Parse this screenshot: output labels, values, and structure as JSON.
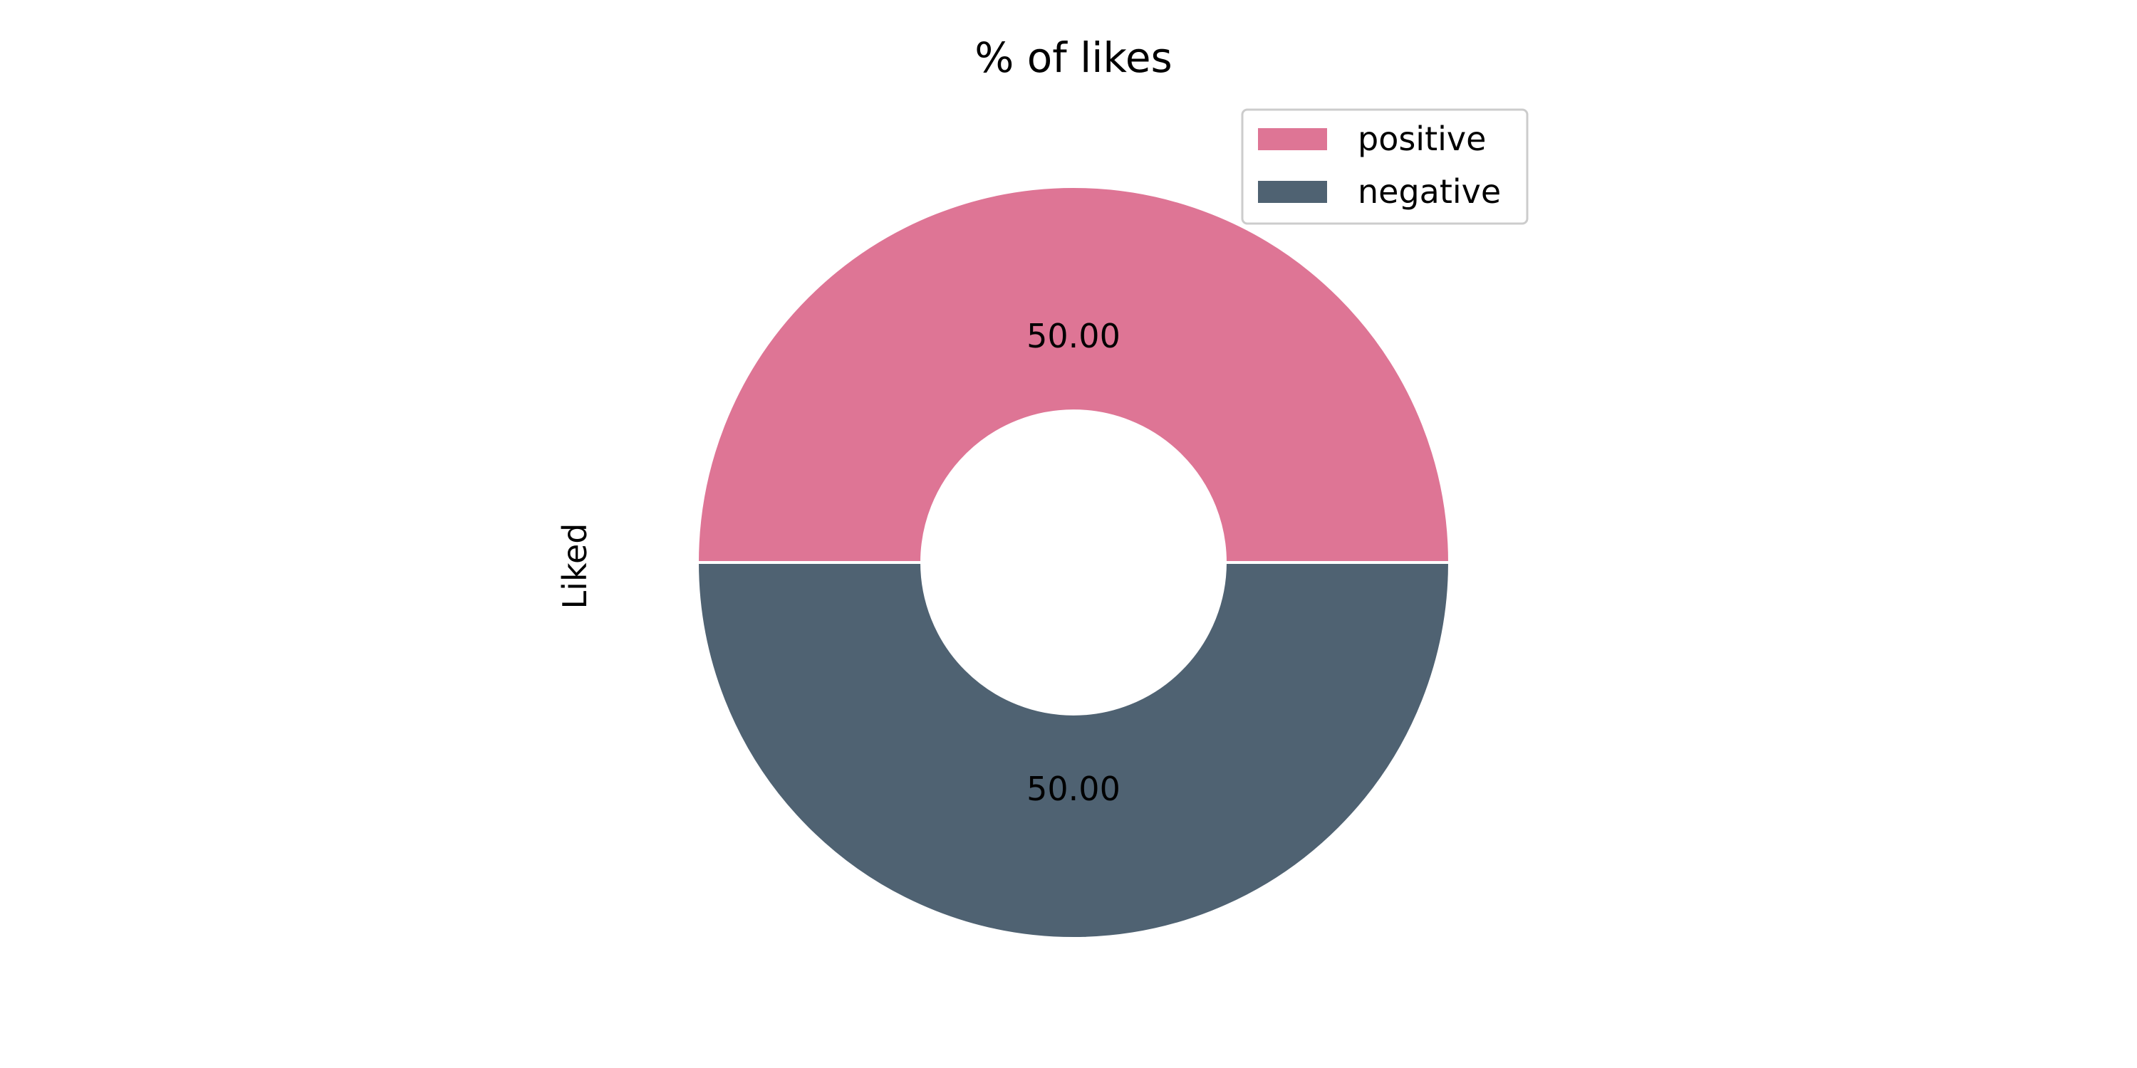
{
  "chart_data": {
    "type": "pie",
    "title": "% of likes",
    "ylabel": "Liked",
    "labels": [
      "positive",
      "negative"
    ],
    "values": [
      50.0,
      50.0
    ],
    "data_labels": [
      "50.00",
      "50.00"
    ],
    "colors": [
      "#DE7595",
      "#4F6272"
    ],
    "donut": true,
    "legend_position": "upper-right"
  }
}
